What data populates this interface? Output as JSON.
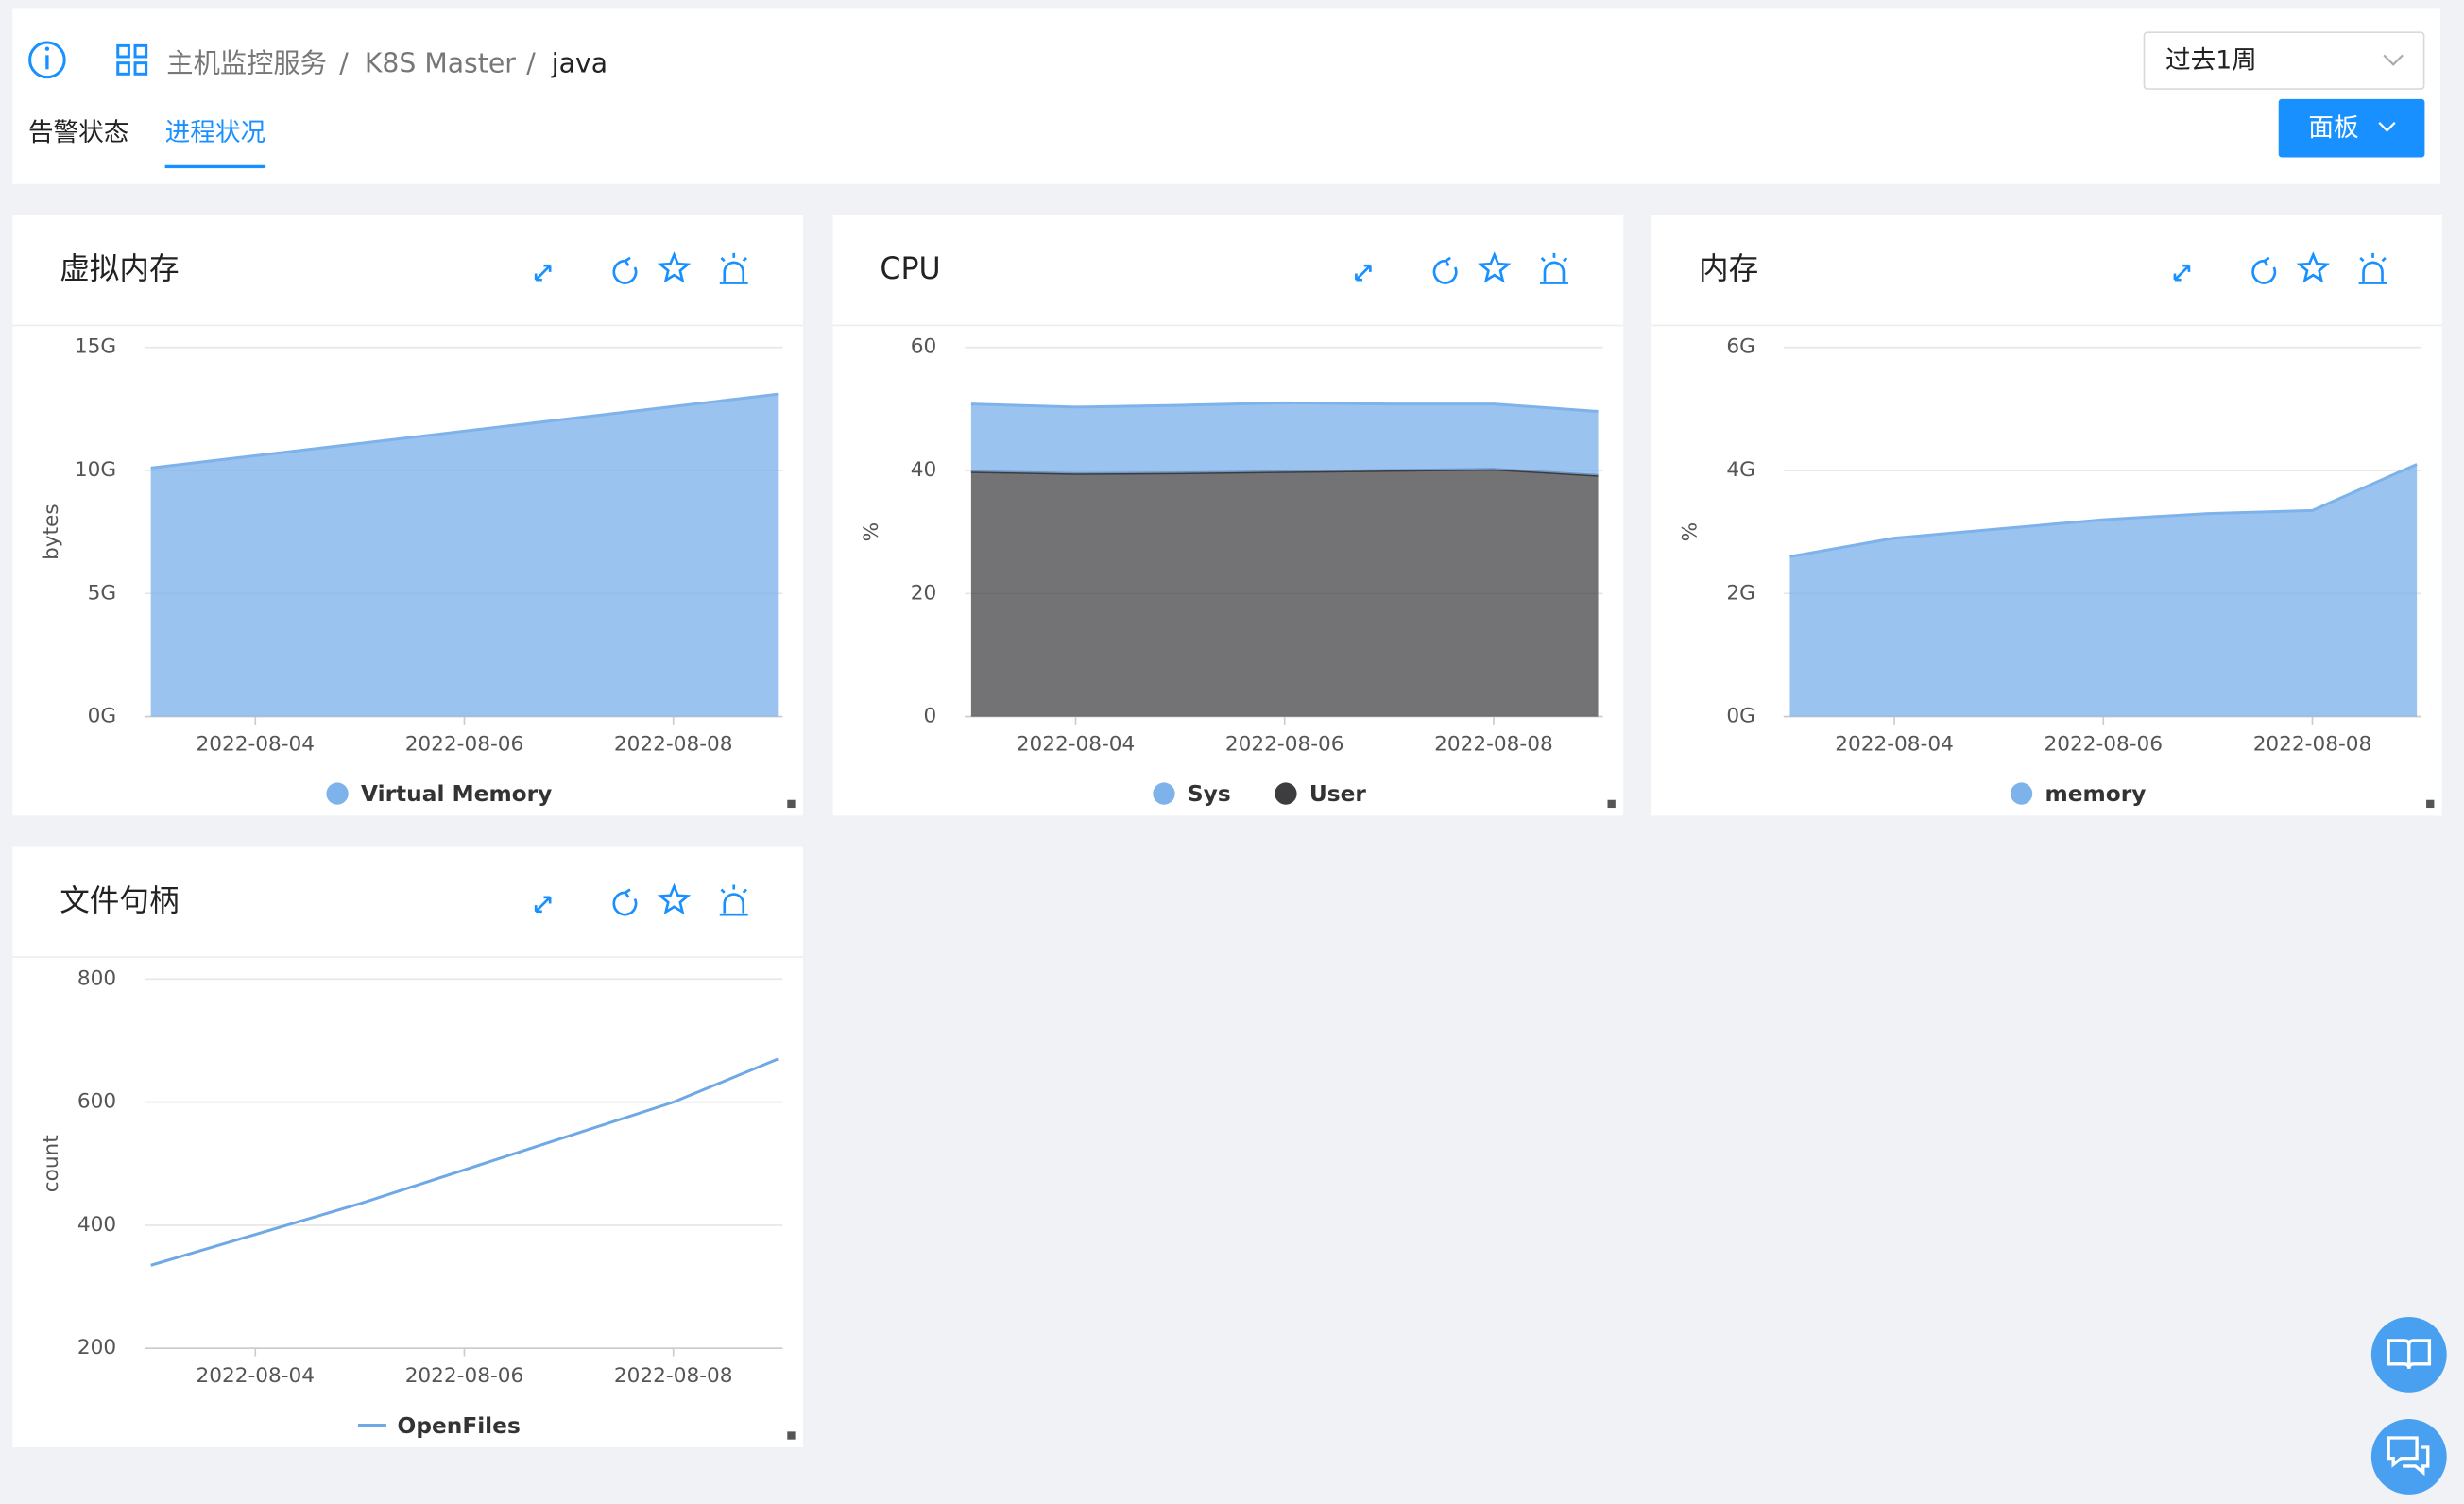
{
  "header": {
    "breadcrumb": [
      "主机监控服务",
      "K8S Master",
      "java"
    ],
    "separator": "/",
    "tabs": {
      "items": [
        "告警状态",
        "进程状况"
      ],
      "active": 1
    },
    "time_range": "过去1周",
    "panel_button": "面板"
  },
  "chart_data": [
    {
      "type": "area",
      "title": "虚拟内存",
      "y_label": "bytes",
      "x": [
        "2022-08-03",
        "2022-08-04",
        "2022-08-05",
        "2022-08-06",
        "2022-08-07",
        "2022-08-08",
        "2022-08-09"
      ],
      "xlim": [
        "2022-08-03",
        "2022-08-09"
      ],
      "xticks": [
        "2022-08-04",
        "2022-08-06",
        "2022-08-08"
      ],
      "ylim": [
        0,
        15000000000
      ],
      "yticks": [
        {
          "value": 0,
          "label": "0G"
        },
        {
          "value": 5000000000,
          "label": "5G"
        },
        {
          "value": 10000000000,
          "label": "10G"
        },
        {
          "value": 15000000000,
          "label": "15G"
        }
      ],
      "grid": true,
      "series": [
        {
          "name": "Virtual Memory",
          "color": "#7eb2ea",
          "values": [
            10100000000,
            10600000000,
            11100000000,
            11600000000,
            12100000000,
            12600000000,
            13100000000
          ]
        }
      ]
    },
    {
      "type": "area",
      "title": "CPU",
      "y_label": "%",
      "stacked": true,
      "x": [
        "2022-08-03",
        "2022-08-04",
        "2022-08-05",
        "2022-08-06",
        "2022-08-07",
        "2022-08-08",
        "2022-08-09"
      ],
      "xlim": [
        "2022-08-03",
        "2022-08-09"
      ],
      "xticks": [
        "2022-08-04",
        "2022-08-06",
        "2022-08-08"
      ],
      "ylim": [
        0,
        60
      ],
      "yticks": [
        0,
        20,
        40,
        60
      ],
      "grid": true,
      "series": [
        {
          "name": "Sys",
          "color": "#7eb2ea",
          "values": [
            11,
            10.8,
            11,
            11.2,
            10.8,
            10.6,
            10.4
          ]
        },
        {
          "name": "User",
          "color": "#3d3d40",
          "values": [
            39.8,
            39.5,
            39.6,
            39.8,
            40,
            40.2,
            39.2
          ]
        }
      ]
    },
    {
      "type": "area",
      "title": "内存",
      "y_label": "%",
      "x": [
        "2022-08-03",
        "2022-08-04",
        "2022-08-05",
        "2022-08-06",
        "2022-08-07",
        "2022-08-08",
        "2022-08-09"
      ],
      "xlim": [
        "2022-08-03",
        "2022-08-09"
      ],
      "xticks": [
        "2022-08-04",
        "2022-08-06",
        "2022-08-08"
      ],
      "ylim": [
        0,
        6000000000
      ],
      "yticks": [
        {
          "value": 0,
          "label": "0G"
        },
        {
          "value": 2000000000,
          "label": "2G"
        },
        {
          "value": 4000000000,
          "label": "4G"
        },
        {
          "value": 6000000000,
          "label": "6G"
        }
      ],
      "grid": true,
      "series": [
        {
          "name": "memory",
          "color": "#7eb2ea",
          "values": [
            2600000000,
            2900000000,
            3050000000,
            3200000000,
            3300000000,
            3350000000,
            4100000000
          ]
        }
      ]
    },
    {
      "type": "line",
      "title": "文件句柄",
      "y_label": "count",
      "x": [
        "2022-08-03",
        "2022-08-04",
        "2022-08-05",
        "2022-08-06",
        "2022-08-07",
        "2022-08-08",
        "2022-08-09"
      ],
      "xlim": [
        "2022-08-03",
        "2022-08-09"
      ],
      "xticks": [
        "2022-08-04",
        "2022-08-06",
        "2022-08-08"
      ],
      "ylim": [
        200,
        800
      ],
      "yticks": [
        200,
        400,
        600,
        800
      ],
      "grid": true,
      "series": [
        {
          "name": "OpenFiles",
          "color": "#6fa8e6",
          "values": [
            335,
            385,
            435,
            490,
            545,
            600,
            670
          ]
        }
      ]
    }
  ]
}
